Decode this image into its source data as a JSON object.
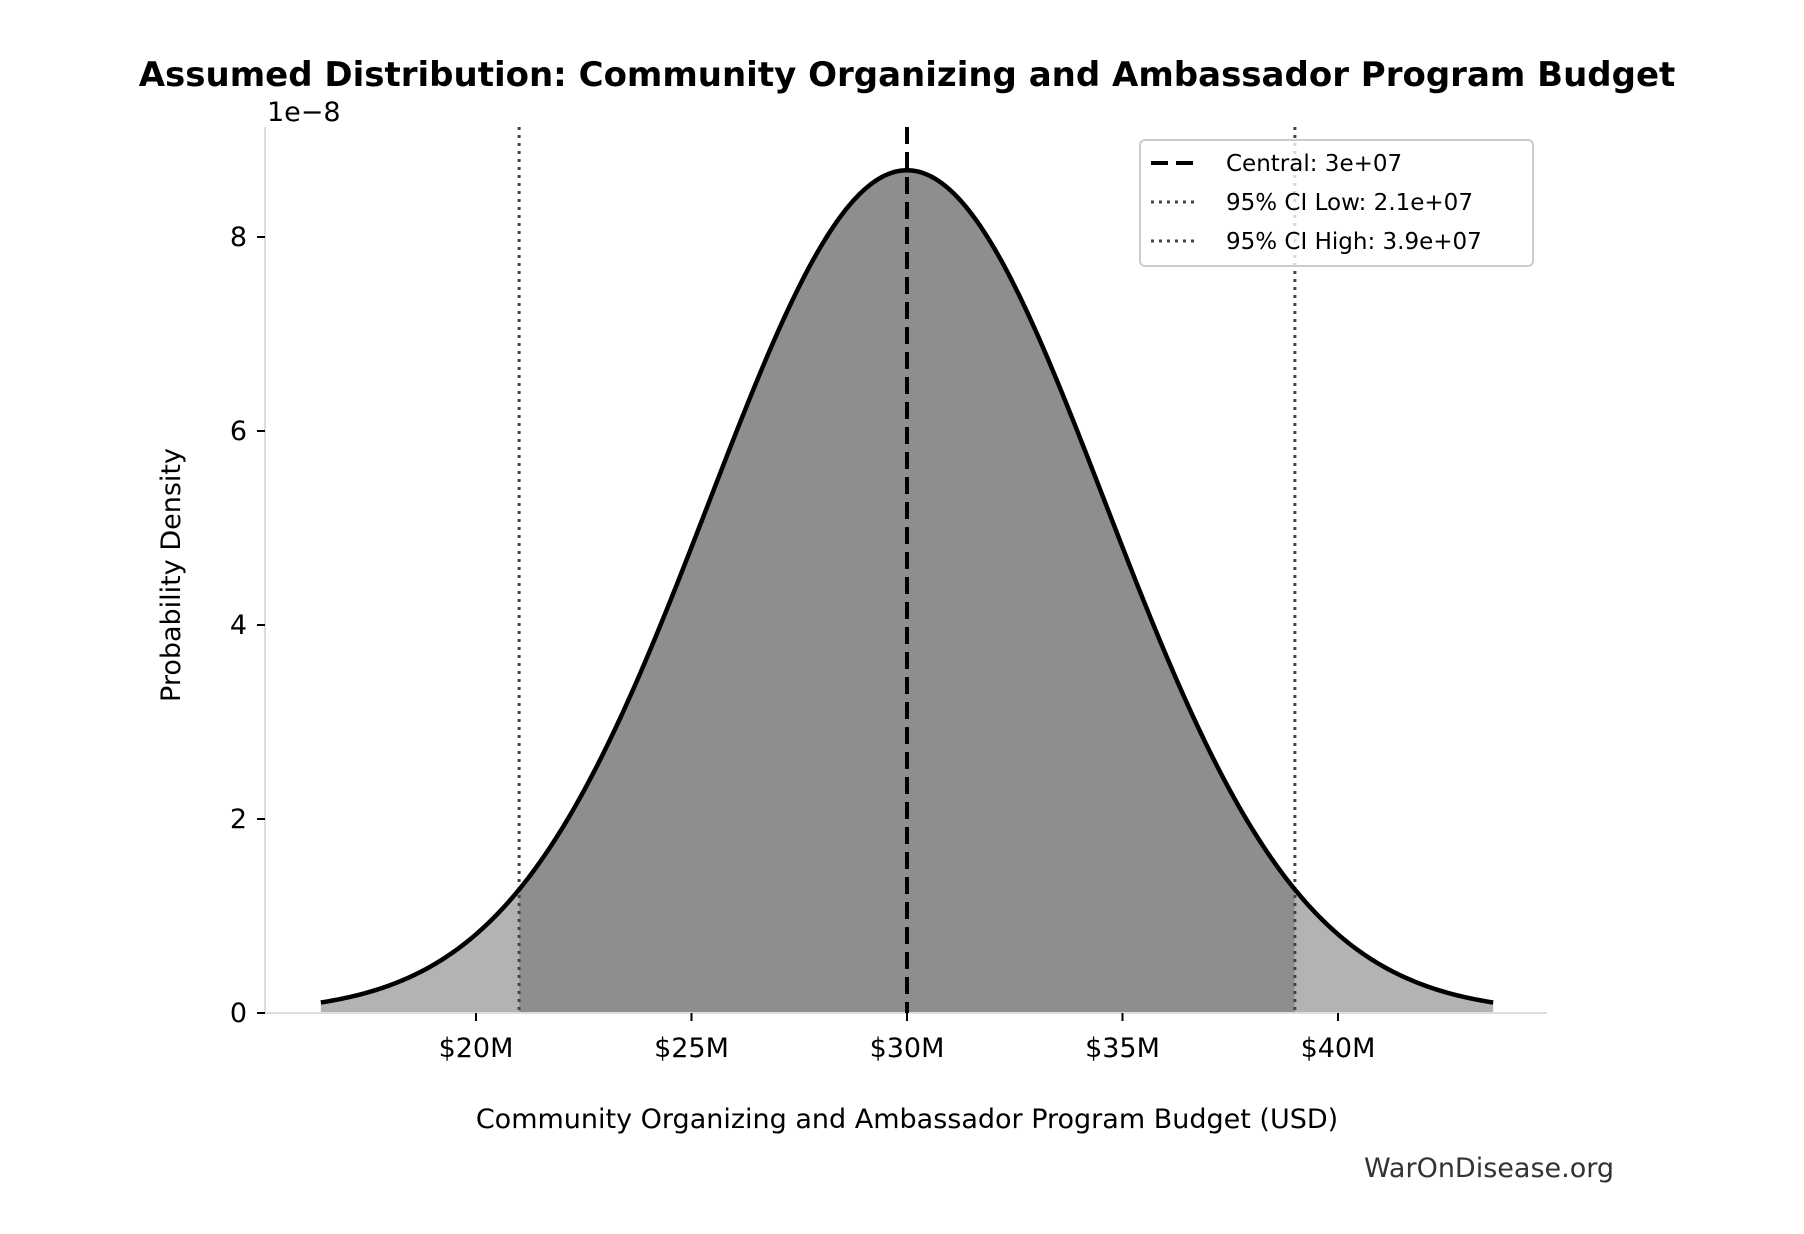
{
  "chart_data": {
    "type": "area",
    "title": "Assumed Distribution: Community Organizing and Ambassador Program Budget",
    "xlabel": "Community Organizing and Ambassador Program Budget (USD)",
    "ylabel": "Probability Density",
    "y_offset_label": "1e−8",
    "y_scale": 1e-08,
    "distribution": {
      "kind": "normal",
      "mean": 30000000,
      "ci95_low": 21000000,
      "ci95_high": 39000000,
      "x_range": [
        16400000,
        43600000
      ]
    },
    "xlim": [
      15700000,
      45500000
    ],
    "ylim": [
      0,
      9.1
    ],
    "x_ticks": [
      {
        "value": 20000000,
        "label": "$20M"
      },
      {
        "value": 25000000,
        "label": "$25M"
      },
      {
        "value": 30000000,
        "label": "$30M"
      },
      {
        "value": 35000000,
        "label": "$35M"
      },
      {
        "value": 40000000,
        "label": "$40M"
      }
    ],
    "y_ticks": [
      {
        "value": 0,
        "label": "0"
      },
      {
        "value": 2,
        "label": "2"
      },
      {
        "value": 4,
        "label": "4"
      },
      {
        "value": 6,
        "label": "6"
      },
      {
        "value": 8,
        "label": "8"
      }
    ],
    "legend": {
      "placement": "top-right",
      "entries": [
        {
          "label": "Central: 3e+07",
          "style": "dashed",
          "color": "#000000"
        },
        {
          "label": "95% CI Low: 2.1e+07",
          "style": "dotted",
          "color": "#444444"
        },
        {
          "label": "95% CI High: 3.9e+07",
          "style": "dotted",
          "color": "#444444"
        }
      ]
    },
    "colors": {
      "ci_fill": "#8e8e8e",
      "tail_fill": "#b3b3b3",
      "curve": "#000000"
    },
    "grid": false
  },
  "watermark": "WarOnDisease.org"
}
